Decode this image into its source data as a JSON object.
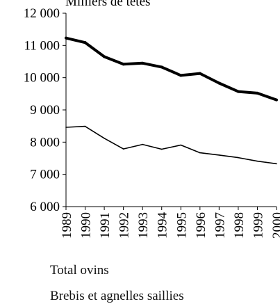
{
  "chart_data": {
    "type": "line",
    "ylabel": "Milliers de têtes",
    "x": [
      "1989",
      "1990",
      "1991",
      "1992",
      "1993",
      "1994",
      "1995",
      "1996",
      "1997",
      "1998",
      "1999",
      "2000"
    ],
    "ylim": [
      6000,
      12000
    ],
    "yticks": [
      6000,
      7000,
      8000,
      9000,
      10000,
      11000,
      12000
    ],
    "ytick_labels": [
      "6 000",
      "7 000",
      "8 000",
      "9 000",
      "10 000",
      "11 000",
      "12 000"
    ],
    "grid": false,
    "legend_position": "bottom",
    "series": [
      {
        "name": "Total ovins",
        "color": "#000000",
        "width": "thick",
        "values": [
          11230,
          11090,
          10650,
          10420,
          10450,
          10330,
          10070,
          10130,
          9830,
          9570,
          9520,
          9310
        ]
      },
      {
        "name": "Brebis et agnelles saillies",
        "color": "#000000",
        "width": "thin",
        "values": [
          8460,
          8490,
          8120,
          7790,
          7930,
          7780,
          7910,
          7670,
          7600,
          7520,
          7410,
          7330
        ]
      }
    ]
  }
}
